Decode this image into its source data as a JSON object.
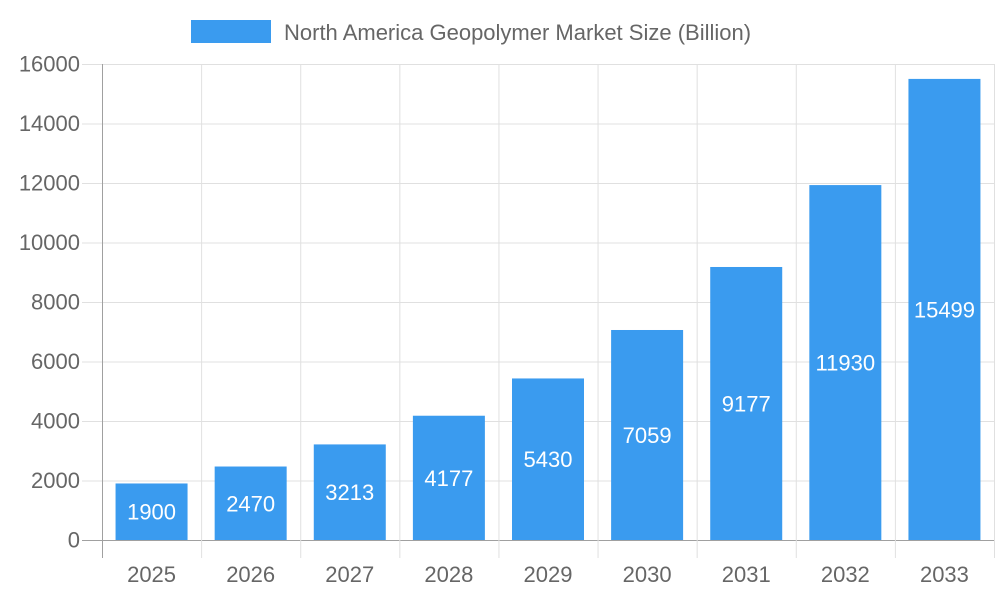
{
  "chart_data": {
    "type": "bar",
    "title": "",
    "xlabel": "",
    "ylabel": "",
    "categories": [
      "2025",
      "2026",
      "2027",
      "2028",
      "2029",
      "2030",
      "2031",
      "2032",
      "2033"
    ],
    "series": [
      {
        "name": "North America Geopolymer Market  Size (Billion)",
        "values": [
          1900,
          2470,
          3213,
          4177,
          5430,
          7059,
          9177,
          11930,
          15499
        ]
      }
    ],
    "ylim": [
      0,
      16000
    ],
    "yticks": [
      0,
      2000,
      4000,
      6000,
      8000,
      10000,
      12000,
      14000,
      16000
    ],
    "grid": true,
    "legend_position": "top",
    "data_labels": true,
    "colors": {
      "bar": "#3a9bef",
      "grid": "#e0e0e0",
      "axis": "#a0a0a0",
      "text": "#666666",
      "label": "#ffffff"
    }
  }
}
